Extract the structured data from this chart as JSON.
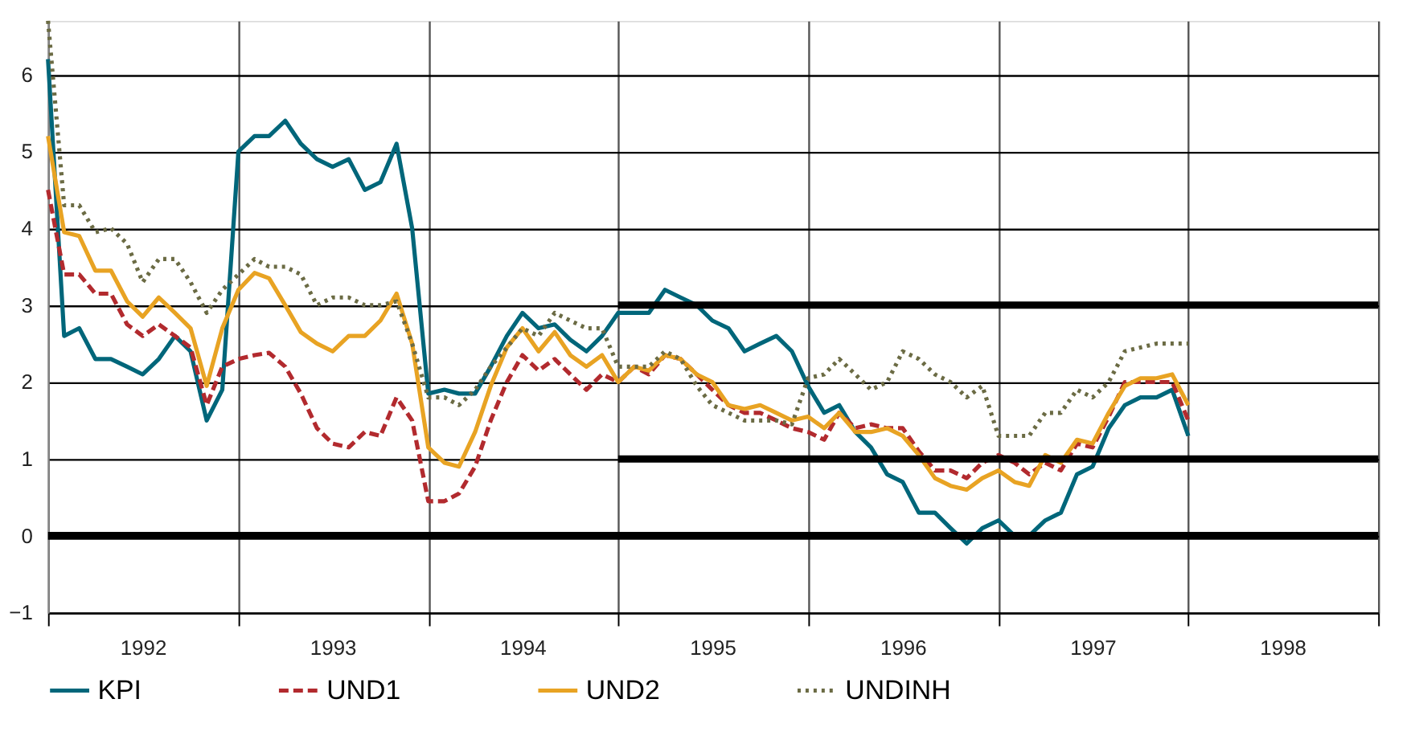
{
  "chart_data": {
    "type": "line",
    "x": [
      "1992-01",
      "1992-02",
      "1992-03",
      "1992-04",
      "1992-05",
      "1992-06",
      "1992-07",
      "1992-08",
      "1992-09",
      "1992-10",
      "1992-11",
      "1992-12",
      "1993-01",
      "1993-02",
      "1993-03",
      "1993-04",
      "1993-05",
      "1993-06",
      "1993-07",
      "1993-08",
      "1993-09",
      "1993-10",
      "1993-11",
      "1993-12",
      "1994-01",
      "1994-02",
      "1994-03",
      "1994-04",
      "1994-05",
      "1994-06",
      "1994-07",
      "1994-08",
      "1994-09",
      "1994-10",
      "1994-11",
      "1994-12",
      "1995-01",
      "1995-02",
      "1995-03",
      "1995-04",
      "1995-05",
      "1995-06",
      "1995-07",
      "1995-08",
      "1995-09",
      "1995-10",
      "1995-11",
      "1995-12",
      "1996-01",
      "1996-02",
      "1996-03",
      "1996-04",
      "1996-05",
      "1996-06",
      "1996-07",
      "1996-08",
      "1996-09",
      "1996-10",
      "1996-11",
      "1996-12",
      "1997-01",
      "1997-02",
      "1997-03",
      "1997-04",
      "1997-05",
      "1997-06",
      "1997-07",
      "1997-08",
      "1997-09",
      "1997-10",
      "1997-11",
      "1997-12",
      "1998-01"
    ],
    "series": [
      {
        "name": "KPI",
        "color": "#00667a",
        "line_style": "solid",
        "values": [
          6.2,
          2.6,
          2.7,
          2.3,
          2.3,
          2.2,
          2.1,
          2.3,
          2.6,
          2.4,
          1.5,
          1.9,
          5.0,
          5.2,
          5.2,
          5.4,
          5.1,
          4.9,
          4.8,
          4.9,
          4.5,
          4.6,
          5.1,
          4.0,
          1.85,
          1.9,
          1.85,
          1.85,
          2.2,
          2.6,
          2.9,
          2.7,
          2.75,
          2.55,
          2.4,
          2.6,
          2.9,
          2.9,
          2.9,
          3.2,
          3.1,
          3.0,
          2.8,
          2.7,
          2.4,
          2.5,
          2.6,
          2.4,
          1.95,
          1.6,
          1.7,
          1.35,
          1.15,
          0.8,
          0.7,
          0.3,
          0.3,
          0.1,
          -0.1,
          0.1,
          0.2,
          0.0,
          0.0,
          0.2,
          0.3,
          0.8,
          0.9,
          1.4,
          1.7,
          1.8,
          1.8,
          1.9,
          1.3
        ]
      },
      {
        "name": "UND1",
        "color": "#b22a2e",
        "line_style": "dashed",
        "values": [
          4.5,
          3.4,
          3.4,
          3.15,
          3.15,
          2.75,
          2.6,
          2.75,
          2.6,
          2.45,
          1.7,
          2.2,
          2.3,
          2.35,
          2.38,
          2.2,
          1.85,
          1.4,
          1.2,
          1.15,
          1.35,
          1.3,
          1.8,
          1.5,
          0.45,
          0.45,
          0.55,
          0.9,
          1.5,
          2.0,
          2.35,
          2.15,
          2.3,
          2.1,
          1.9,
          2.1,
          2.0,
          2.2,
          2.1,
          2.35,
          2.3,
          2.1,
          1.9,
          1.7,
          1.6,
          1.6,
          1.5,
          1.4,
          1.35,
          1.25,
          1.6,
          1.4,
          1.45,
          1.4,
          1.4,
          1.1,
          0.85,
          0.85,
          0.75,
          0.95,
          1.05,
          0.95,
          0.8,
          0.95,
          0.85,
          1.2,
          1.15,
          1.55,
          2.0,
          2.0,
          2.0,
          2.0,
          1.5
        ]
      },
      {
        "name": "UND2",
        "color": "#e8a323",
        "line_style": "solid",
        "values": [
          5.2,
          3.95,
          3.9,
          3.45,
          3.45,
          3.05,
          2.85,
          3.1,
          2.9,
          2.7,
          1.95,
          2.7,
          3.2,
          3.42,
          3.35,
          3.0,
          2.65,
          2.5,
          2.4,
          2.6,
          2.6,
          2.8,
          3.15,
          2.5,
          1.15,
          0.95,
          0.9,
          1.35,
          1.95,
          2.45,
          2.7,
          2.4,
          2.65,
          2.35,
          2.2,
          2.35,
          2.0,
          2.2,
          2.15,
          2.35,
          2.3,
          2.1,
          2.0,
          1.7,
          1.65,
          1.7,
          1.6,
          1.5,
          1.55,
          1.4,
          1.6,
          1.35,
          1.35,
          1.4,
          1.3,
          1.05,
          0.75,
          0.65,
          0.6,
          0.75,
          0.85,
          0.7,
          0.65,
          1.05,
          0.95,
          1.25,
          1.2,
          1.6,
          1.95,
          2.05,
          2.05,
          2.1,
          1.7
        ]
      },
      {
        "name": "UNDINH",
        "color": "#6b6b44",
        "line_style": "dotted",
        "values": [
          6.7,
          4.3,
          4.3,
          3.95,
          4.0,
          3.8,
          3.3,
          3.6,
          3.6,
          3.3,
          2.9,
          3.2,
          3.4,
          3.6,
          3.5,
          3.5,
          3.4,
          3.0,
          3.1,
          3.1,
          3.0,
          3.0,
          3.05,
          2.5,
          1.8,
          1.8,
          1.7,
          1.9,
          2.2,
          2.45,
          2.7,
          2.6,
          2.9,
          2.8,
          2.7,
          2.7,
          2.2,
          2.2,
          2.2,
          2.4,
          2.3,
          1.95,
          1.7,
          1.6,
          1.5,
          1.5,
          1.5,
          1.45,
          2.05,
          2.1,
          2.3,
          2.1,
          1.9,
          2.0,
          2.4,
          2.3,
          2.1,
          2.0,
          1.8,
          1.95,
          1.3,
          1.3,
          1.3,
          1.6,
          1.6,
          1.9,
          1.8,
          2.0,
          2.4,
          2.45,
          2.5,
          2.5,
          2.5
        ]
      },
      {
        "color": "#000000",
        "line_style": "solid",
        "x": [
          "1995-01",
          "1999-01"
        ],
        "values": [
          3,
          3
        ]
      },
      {
        "color": "#000000",
        "line_style": "solid",
        "x": [
          "1995-01",
          "1999-01"
        ],
        "values": [
          1,
          1
        ]
      }
    ],
    "ref_lines": [
      {
        "axis": "y",
        "value": 0,
        "color": "#000000"
      }
    ],
    "xlim": [
      "1992-01",
      "1999-01"
    ],
    "xticks": [
      {
        "value": "1992-01",
        "label": null
      },
      {
        "value": "1992-07",
        "label": "1992"
      },
      {
        "value": "1993-01",
        "label": null
      },
      {
        "value": "1993-07",
        "label": "1993"
      },
      {
        "value": "1994-01",
        "label": null
      },
      {
        "value": "1994-07",
        "label": "1994"
      },
      {
        "value": "1995-01",
        "label": null
      },
      {
        "value": "1995-07",
        "label": "1995"
      },
      {
        "value": "1996-01",
        "label": null
      },
      {
        "value": "1996-07",
        "label": "1996"
      },
      {
        "value": "1997-01",
        "label": null
      },
      {
        "value": "1997-07",
        "label": "1997"
      },
      {
        "value": "1998-01",
        "label": null
      },
      {
        "value": "1998-07",
        "label": "1998"
      },
      {
        "value": "1999-01",
        "label": null
      }
    ],
    "ylim": [
      -1,
      6.7
    ],
    "yticks": [
      -1,
      0,
      1,
      2,
      3,
      4,
      5,
      6
    ],
    "grid": true,
    "legend": "bottom",
    "marker": "none"
  }
}
